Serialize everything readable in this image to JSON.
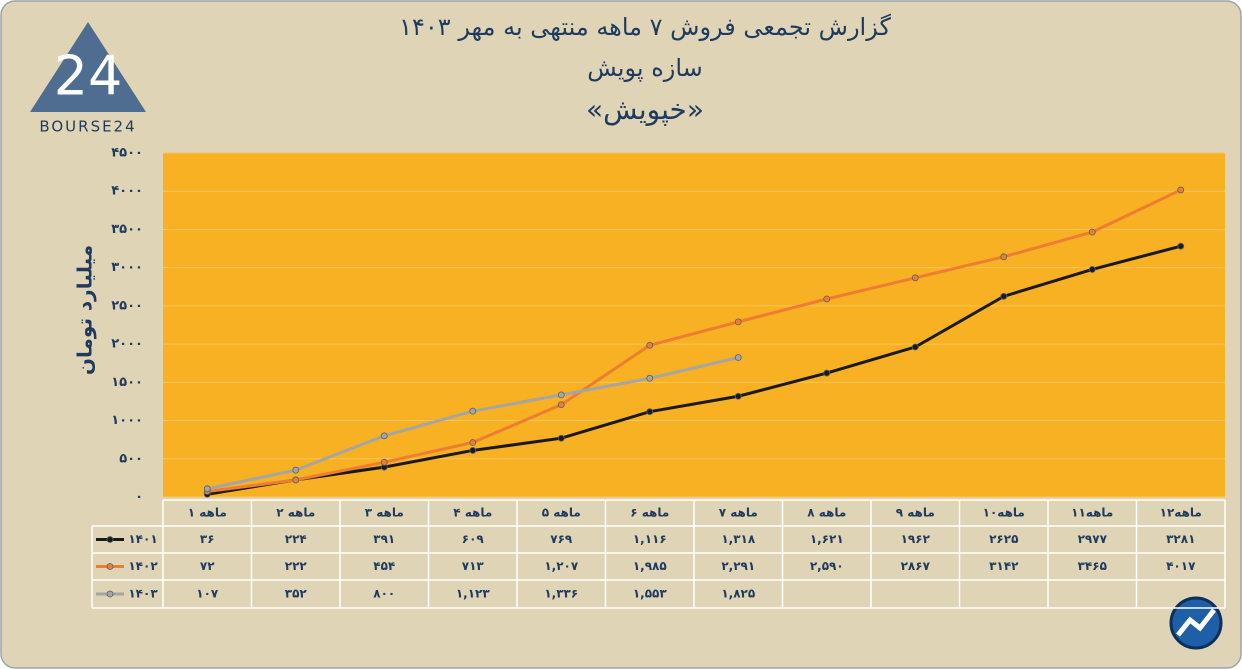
{
  "logo": {
    "mark": "24",
    "name": "BOURSE24"
  },
  "chart_data": {
    "type": "line",
    "title": "گزارش تجمعی فروش ۷ ماهه منتهی به مهر ۱۴۰۳",
    "subtitle": "سازه پویش",
    "annotation": "«خپویش»",
    "y_label": "میلیارد تومان",
    "categories": [
      "۱ ماهه",
      "۲ ماهه",
      "۳ ماهه",
      "۴ ماهه",
      "۵ ماهه",
      "۶ ماهه",
      "۷ ماهه",
      "۸ ماهه",
      "۹ ماهه",
      "۱۰ماهه",
      "۱۱ماهه",
      "۱۲ماهه"
    ],
    "series": [
      {
        "name": "۱۴۰۱",
        "color": "#1a1a1a",
        "values": [
          36,
          224,
          391,
          609,
          769,
          1116,
          1318,
          1621,
          1962,
          2625,
          2977,
          3281
        ],
        "value_labels": [
          "۳۶",
          "۲۲۴",
          "۳۹۱",
          "۶۰۹",
          "۷۶۹",
          "۱,۱۱۶",
          "۱,۳۱۸",
          "۱,۶۲۱",
          "۱۹۶۲",
          "۲۶۲۵",
          "۲۹۷۷",
          "۳۲۸۱"
        ]
      },
      {
        "name": "۱۴۰۲",
        "color": "#ed7d31",
        "values": [
          72,
          222,
          454,
          713,
          1207,
          1985,
          2291,
          2590,
          2867,
          3142,
          3465,
          4017
        ],
        "value_labels": [
          "۷۲",
          "۲۲۲",
          "۴۵۴",
          "۷۱۳",
          "۱,۲۰۷",
          "۱,۹۸۵",
          "۲,۲۹۱",
          "۲,۵۹۰",
          "۲۸۶۷",
          "۳۱۴۲",
          "۳۴۶۵",
          "۴۰۱۷"
        ]
      },
      {
        "name": "۱۴۰۳",
        "color": "#a5a5a5",
        "values": [
          107,
          352,
          800,
          1123,
          1336,
          1553,
          1825,
          null,
          null,
          null,
          null,
          null
        ],
        "value_labels": [
          "۱۰۷",
          "۳۵۲",
          "۸۰۰",
          "۱,۱۲۳",
          "۱,۳۳۶",
          "۱,۵۵۳",
          "۱,۸۲۵",
          null,
          null,
          null,
          null,
          null
        ]
      }
    ],
    "ylim": [
      0,
      4500
    ],
    "yticks": [
      {
        "value": 0,
        "label": "۰"
      },
      {
        "value": 500,
        "label": "۵۰۰"
      },
      {
        "value": 1000,
        "label": "۱۰۰۰"
      },
      {
        "value": 1500,
        "label": "۱۵۰۰"
      },
      {
        "value": 2000,
        "label": "۲۰۰۰"
      },
      {
        "value": 2500,
        "label": "۲۵۰۰"
      },
      {
        "value": 3000,
        "label": "۳۰۰۰"
      },
      {
        "value": 3500,
        "label": "۳۵۰۰"
      },
      {
        "value": 4000,
        "label": "۴۰۰۰"
      },
      {
        "value": 4500,
        "label": "۴۵۰۰"
      }
    ],
    "grid": true,
    "plot_color": "#f7b122"
  }
}
